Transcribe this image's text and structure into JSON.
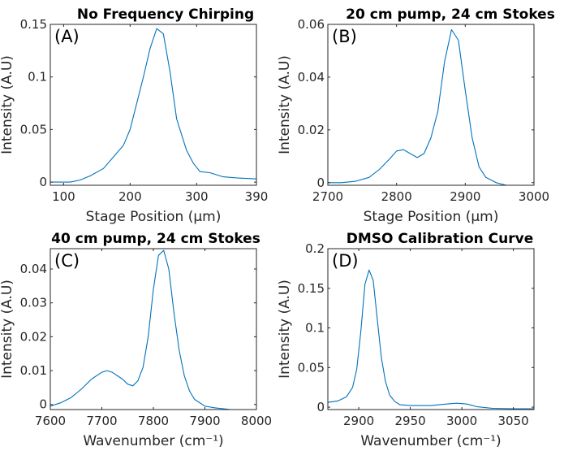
{
  "colors": {
    "series": "#0072bd",
    "axis": "#262626"
  },
  "chart_data": [
    {
      "type": "line",
      "panel_label": "(A)",
      "title": "No Frequency Chirping",
      "xlabel": "Stage Position (μm)",
      "ylabel": "Intensity (A.U)",
      "xlim": [
        80,
        390
      ],
      "ylim": [
        -0.003,
        0.15
      ],
      "xticks": [
        100,
        200,
        300,
        390
      ],
      "yticks": [
        0,
        0.05,
        0.1,
        0.15
      ],
      "xtick_labels": [
        "100",
        "200",
        "300",
        "390"
      ],
      "ytick_labels": [
        "0",
        "0.05",
        "0.1",
        "0.15"
      ],
      "series": [
        {
          "name": "intensity",
          "x": [
            80,
            95,
            110,
            125,
            140,
            160,
            175,
            190,
            200,
            210,
            220,
            230,
            240,
            250,
            260,
            270,
            285,
            295,
            305,
            320,
            340,
            360,
            390
          ],
          "y": [
            0.0,
            0.0,
            0.0,
            0.002,
            0.006,
            0.013,
            0.024,
            0.035,
            0.05,
            0.075,
            0.1,
            0.127,
            0.146,
            0.141,
            0.105,
            0.06,
            0.03,
            0.018,
            0.01,
            0.009,
            0.005,
            0.004,
            0.003
          ]
        }
      ]
    },
    {
      "type": "line",
      "panel_label": "(B)",
      "title": "20 cm pump, 24 cm Stokes",
      "xlabel": "Stage Position (μm)",
      "ylabel": "Intensity (A.U)",
      "xlim": [
        2700,
        3000
      ],
      "ylim": [
        -0.001,
        0.06
      ],
      "xticks": [
        2700,
        2800,
        2900,
        3000
      ],
      "yticks": [
        0,
        0.02,
        0.04,
        0.06
      ],
      "xtick_labels": [
        "2700",
        "2800",
        "2900",
        "3000"
      ],
      "ytick_labels": [
        "0",
        "0.02",
        "0.04",
        "0.06"
      ],
      "series": [
        {
          "name": "intensity",
          "x": [
            2700,
            2720,
            2740,
            2760,
            2775,
            2790,
            2800,
            2810,
            2820,
            2830,
            2840,
            2850,
            2860,
            2870,
            2880,
            2890,
            2900,
            2910,
            2920,
            2930,
            2945,
            2960,
            2980,
            3000
          ],
          "y": [
            0.0,
            0.0,
            0.0005,
            0.002,
            0.005,
            0.009,
            0.012,
            0.0125,
            0.011,
            0.0095,
            0.011,
            0.017,
            0.027,
            0.046,
            0.058,
            0.054,
            0.035,
            0.017,
            0.006,
            0.002,
            0.0,
            -0.001,
            -0.001,
            -0.001
          ]
        }
      ]
    },
    {
      "type": "line",
      "panel_label": "(C)",
      "title": "40 cm pump, 24 cm Stokes",
      "xlabel": "Wavenumber (cm⁻¹)",
      "ylabel": "Intensity (A.U)",
      "xlim": [
        7600,
        8000
      ],
      "ylim": [
        -0.0015,
        0.046
      ],
      "xticks": [
        7600,
        7700,
        7800,
        7900,
        8000
      ],
      "yticks": [
        0,
        0.01,
        0.02,
        0.03,
        0.04
      ],
      "xtick_labels": [
        "7600",
        "7700",
        "7800",
        "7900",
        "8000"
      ],
      "ytick_labels": [
        "0",
        "0.01",
        "0.02",
        "0.03",
        "0.04"
      ],
      "series": [
        {
          "name": "intensity",
          "x": [
            7600,
            7620,
            7640,
            7660,
            7680,
            7700,
            7710,
            7720,
            7740,
            7750,
            7760,
            7770,
            7780,
            7790,
            7800,
            7810,
            7820,
            7830,
            7840,
            7850,
            7860,
            7870,
            7880,
            7900,
            7920,
            7950,
            8000
          ],
          "y": [
            -0.0005,
            0.0005,
            0.002,
            0.0045,
            0.0075,
            0.0095,
            0.01,
            0.0095,
            0.0075,
            0.006,
            0.0055,
            0.007,
            0.011,
            0.02,
            0.034,
            0.044,
            0.0455,
            0.04,
            0.027,
            0.016,
            0.0085,
            0.004,
            0.0015,
            -0.0005,
            -0.001,
            -0.0015,
            -0.0015
          ]
        }
      ]
    },
    {
      "type": "line",
      "panel_label": "(D)",
      "title": "DMSO Calibration Curve",
      "xlabel": "Wavenumber (cm⁻¹)",
      "ylabel": "Intensity (A.U)",
      "xlim": [
        2870,
        3070
      ],
      "ylim": [
        -0.003,
        0.2
      ],
      "xticks": [
        2900,
        2950,
        3000,
        3050
      ],
      "yticks": [
        0,
        0.05,
        0.1,
        0.15,
        0.2
      ],
      "xtick_labels": [
        "2900",
        "2950",
        "3000",
        "3050"
      ],
      "ytick_labels": [
        "0",
        "0.05",
        "0.1",
        "0.15",
        "0.2"
      ],
      "series": [
        {
          "name": "intensity",
          "x": [
            2870,
            2880,
            2888,
            2894,
            2898,
            2902,
            2906,
            2910,
            2914,
            2918,
            2922,
            2926,
            2930,
            2935,
            2940,
            2950,
            2970,
            2985,
            2995,
            3005,
            3015,
            3030,
            3050,
            3070
          ],
          "y": [
            0.006,
            0.008,
            0.013,
            0.025,
            0.048,
            0.095,
            0.155,
            0.173,
            0.16,
            0.11,
            0.062,
            0.032,
            0.015,
            0.007,
            0.003,
            0.002,
            0.002,
            0.004,
            0.005,
            0.004,
            0.0005,
            -0.0015,
            -0.002,
            -0.002
          ]
        }
      ]
    }
  ]
}
